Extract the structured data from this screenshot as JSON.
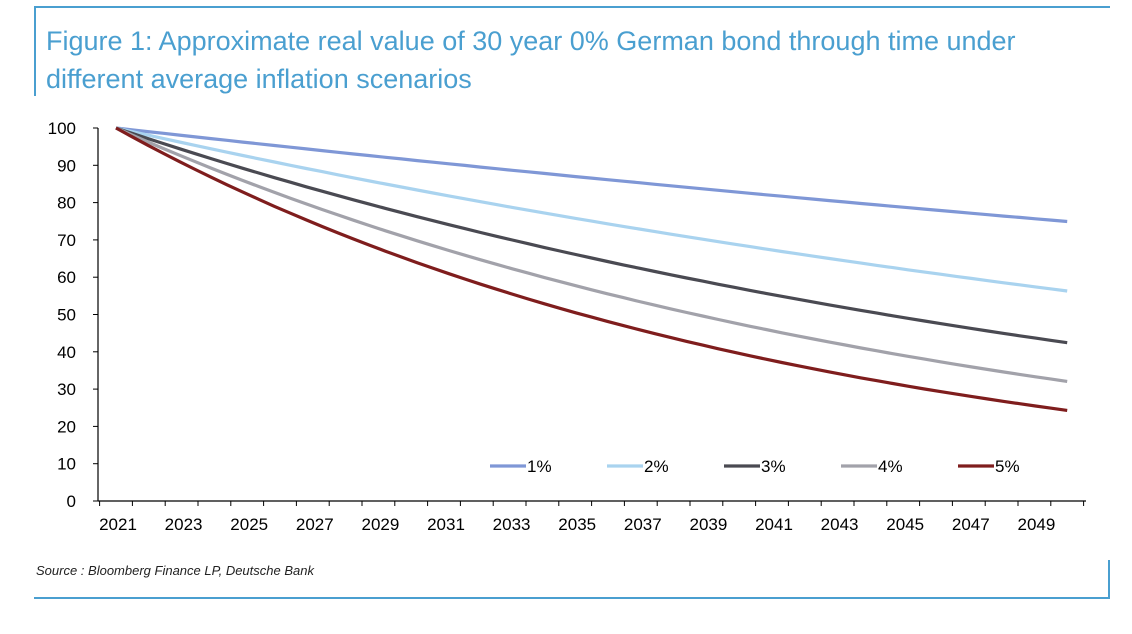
{
  "figure": {
    "title": "Figure 1: Approximate real value of 30 year 0% German bond through time under different average inflation scenarios",
    "source": "Source : Bloomberg Finance LP, Deutsche Bank",
    "frame_color": "#4a9fd0"
  },
  "chart_data": {
    "type": "line",
    "title": "Figure 1: Approximate real value of 30 year 0% German bond through time under different average inflation scenarios",
    "xlabel": "",
    "ylabel": "",
    "x_start": 2021,
    "x_end": 2050,
    "x_tick_labels": [
      "2021",
      "2023",
      "2025",
      "2027",
      "2029",
      "2031",
      "2033",
      "2035",
      "2037",
      "2039",
      "2041",
      "2043",
      "2045",
      "2047",
      "2049"
    ],
    "y_tick_labels": [
      "0",
      "10",
      "20",
      "30",
      "40",
      "50",
      "60",
      "70",
      "80",
      "90",
      "100"
    ],
    "ylim": [
      0,
      100
    ],
    "grid": false,
    "legend_position": "bottom-right inside plot",
    "series": [
      {
        "name": "1%",
        "color": "#7f97d6",
        "rate": 0.01,
        "end_value": 74.7
      },
      {
        "name": "2%",
        "color": "#a9d3ef",
        "rate": 0.02,
        "end_value": 55.7
      },
      {
        "name": "3%",
        "color": "#4a4a52",
        "rate": 0.03,
        "end_value": 41.2
      },
      {
        "name": "4%",
        "color": "#a2a2aa",
        "rate": 0.04,
        "end_value": 30.8
      },
      {
        "name": "5%",
        "color": "#7f1d1d",
        "rate": 0.05,
        "end_value": 22.7
      }
    ]
  }
}
